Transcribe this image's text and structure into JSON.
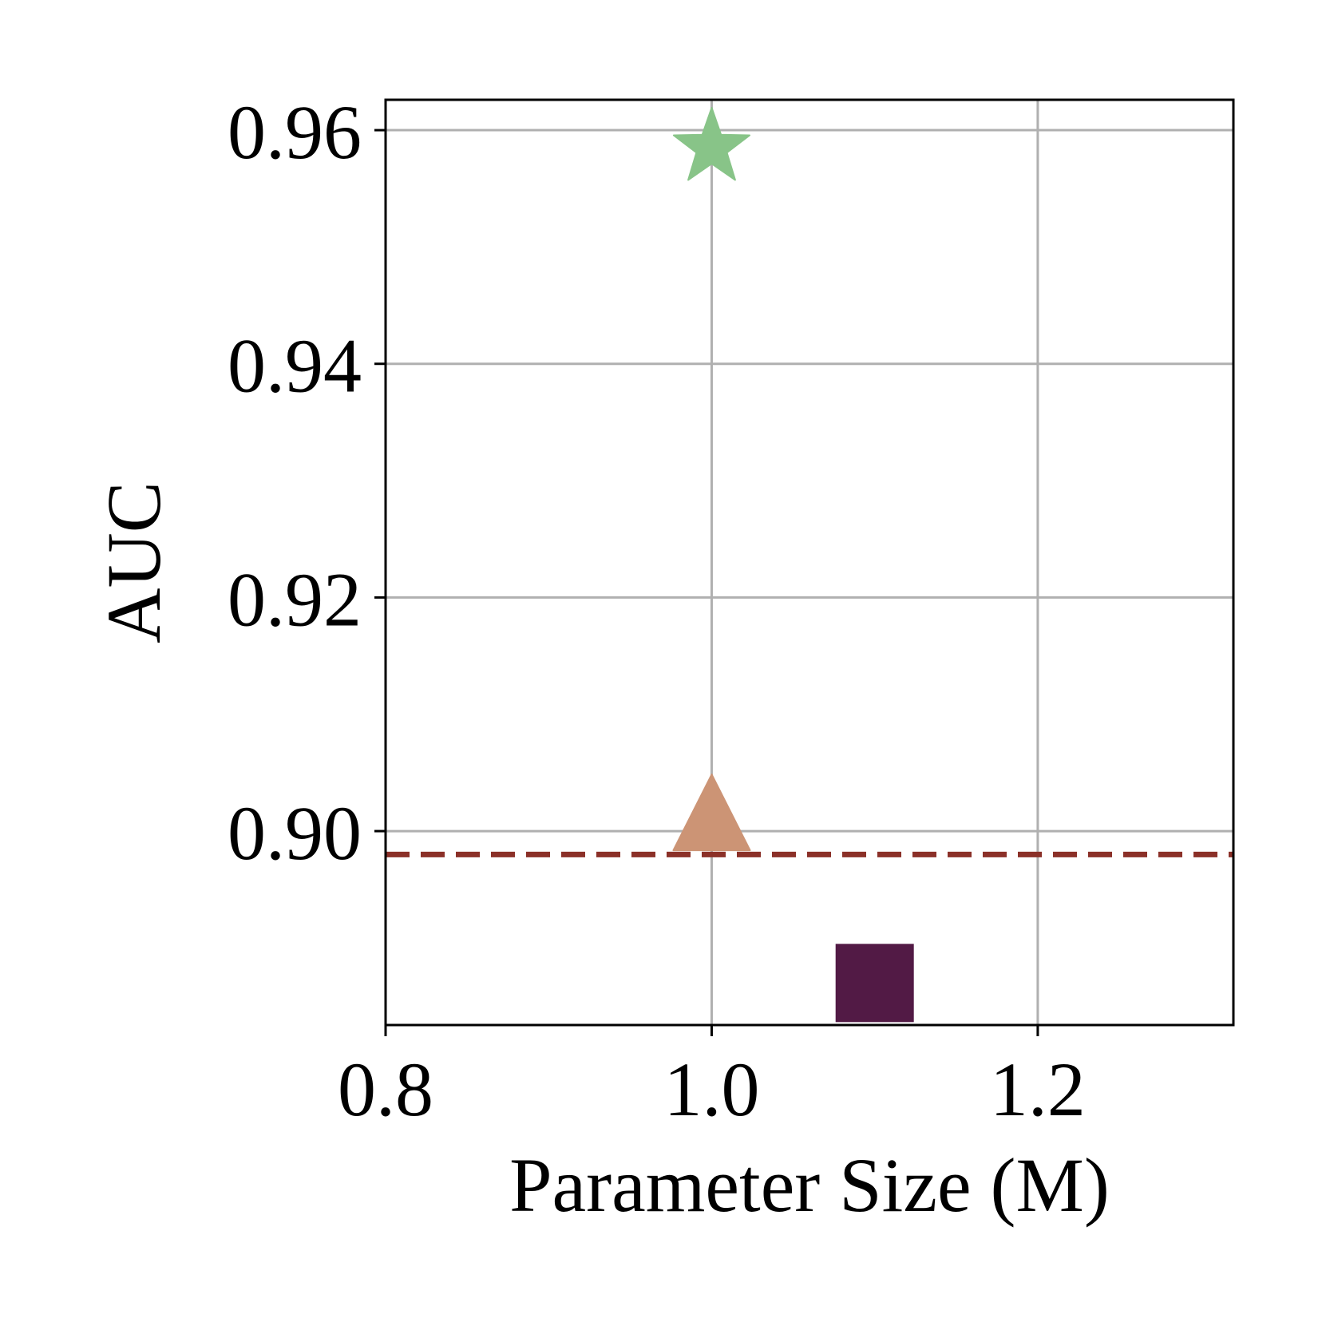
{
  "chart_data": {
    "type": "scatter",
    "title": "",
    "xlabel": "Parameter Size (M)",
    "ylabel": "AUC",
    "xlim": [
      0.8,
      1.32
    ],
    "ylim": [
      0.8834,
      0.9626
    ],
    "xticks": [
      {
        "value": 0.8,
        "label": "0.8"
      },
      {
        "value": 1.0,
        "label": "1.0"
      },
      {
        "value": 1.2,
        "label": "1.2"
      }
    ],
    "yticks": [
      {
        "value": 0.9,
        "label": "0.90"
      },
      {
        "value": 0.92,
        "label": "0.92"
      },
      {
        "value": 0.94,
        "label": "0.94"
      },
      {
        "value": 0.96,
        "label": "0.96"
      }
    ],
    "grid": true,
    "legend": "none",
    "points": [
      {
        "x": 1.0,
        "y": 0.9585,
        "marker": "star",
        "color": "#88c488"
      },
      {
        "x": 1.0,
        "y": 0.9005,
        "marker": "triangle",
        "color": "#cc9475"
      },
      {
        "x": 1.1,
        "y": 0.887,
        "marker": "square",
        "color": "#521a45"
      }
    ],
    "reference_lines": [
      {
        "y": 0.898,
        "style": "dashed",
        "color": "#8b3028"
      }
    ]
  }
}
